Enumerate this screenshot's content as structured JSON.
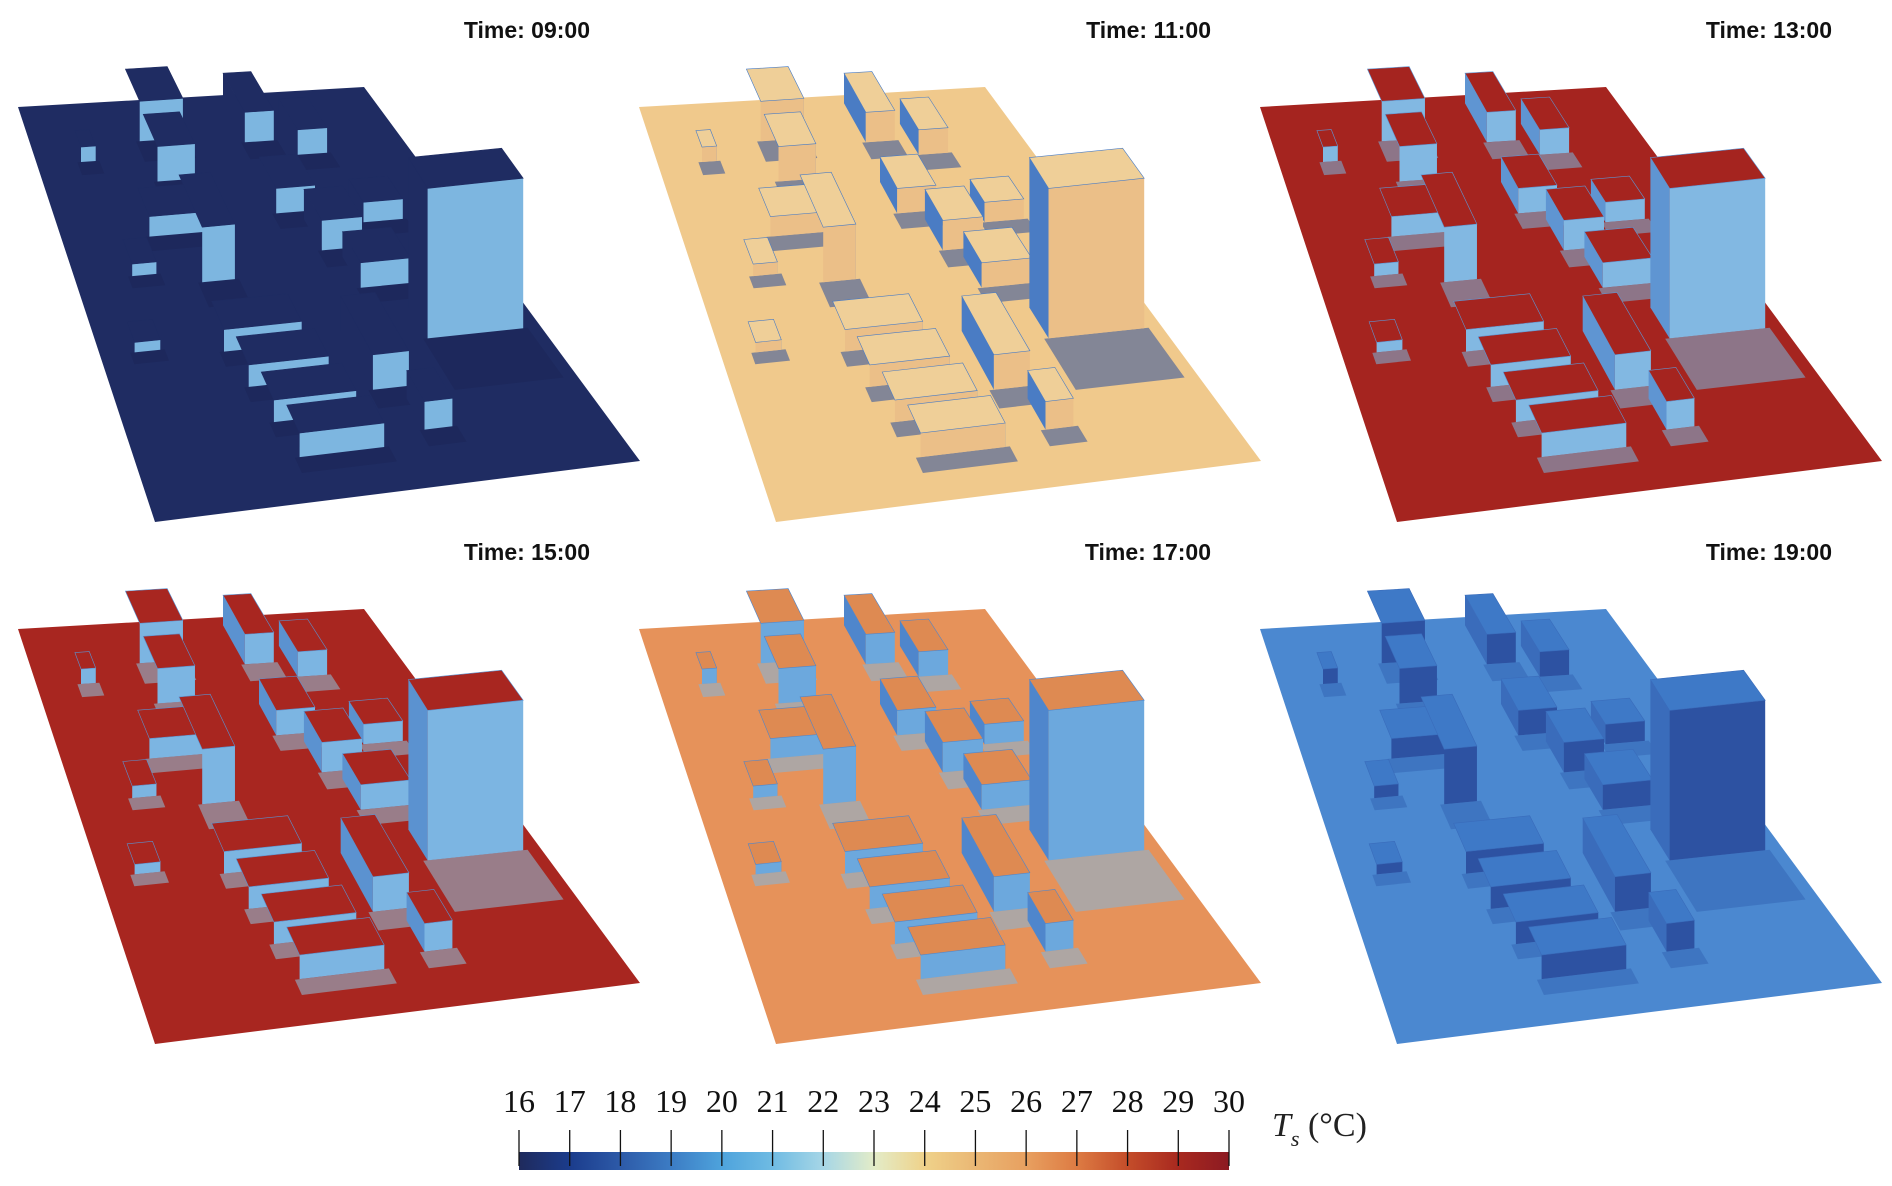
{
  "panels": [
    {
      "title": "Time: 09:00",
      "colors": {
        "ground": "#1f2c62",
        "roof": "#1f2c62",
        "wall_lit": "#7db6e0",
        "wall_shade": "#1f2c62",
        "shadow": "#1b2657"
      }
    },
    {
      "title": "Time: 11:00",
      "colors": {
        "ground": "#f0c98c",
        "roof": "#efcf98",
        "wall_lit": "#ebbf88",
        "wall_shade": "#4a7cc4",
        "shadow": "#2a4f9e"
      }
    },
    {
      "title": "Time: 13:00",
      "colors": {
        "ground": "#a5241f",
        "roof": "#a5241f",
        "wall_lit": "#82b8e2",
        "wall_shade": "#5f95d2",
        "shadow": "#7ab8de"
      }
    },
    {
      "title": "Time: 15:00",
      "colors": {
        "ground": "#a82620",
        "roof": "#a82620",
        "wall_lit": "#7cb5e2",
        "wall_shade": "#5b92d0",
        "shadow": "#8cc4e0"
      }
    },
    {
      "title": "Time: 17:00",
      "colors": {
        "ground": "#e6925a",
        "roof": "#de8a52",
        "wall_lit": "#6ca8dd",
        "wall_shade": "#4f86cc",
        "shadow": "#7fb6e0"
      }
    },
    {
      "title": "Time: 19:00",
      "colors": {
        "ground": "#4b88d0",
        "roof": "#3e79c7",
        "wall_lit": "#2d52a2",
        "wall_shade": "#3a6cbb",
        "shadow": "#3466b5"
      }
    }
  ],
  "colorbar": {
    "label_main": "T",
    "label_sub": "s",
    "label_unit": " (°C)",
    "min": 16,
    "max": 30,
    "ticks": [
      "16",
      "17",
      "18",
      "19",
      "20",
      "21",
      "22",
      "23",
      "24",
      "25",
      "26",
      "27",
      "28",
      "29",
      "30"
    ],
    "colormap": [
      "#1f2a5c",
      "#1b3c8c",
      "#2d5aa8",
      "#3c7cc4",
      "#4ea3dc",
      "#6fbbe3",
      "#a6d6e6",
      "#e3ecc8",
      "#efd28a",
      "#eab774",
      "#e8a060",
      "#dd7b43",
      "#c44d2a",
      "#a8291f",
      "#8c1a22"
    ]
  }
}
